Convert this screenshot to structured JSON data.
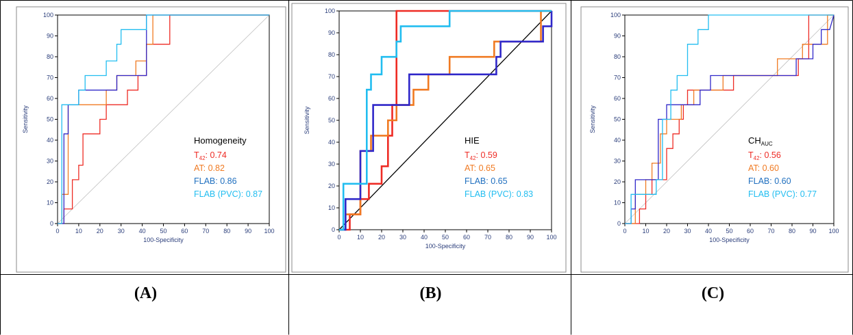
{
  "panel_labels": [
    "(A)",
    "(B)",
    "(C)"
  ],
  "colors": {
    "t42": "#ee2b24",
    "at": "#f07a22",
    "flab": "#2f27c9",
    "flab_pvc": "#21bdf0",
    "flab_text": "#1f6fbf",
    "axis_text": "#2a3d7a",
    "diagonal_a": "#c0c0c0",
    "diagonal_b": "#000000"
  },
  "chart_data": [
    {
      "type": "line",
      "panel": "A",
      "xlabel": "100-Specificity",
      "ylabel": "Sensitivity",
      "xlim": [
        0,
        100
      ],
      "ylim": [
        0,
        100
      ],
      "xticks": [
        "0",
        "10",
        "20",
        "30",
        "40",
        "50",
        "60",
        "70",
        "80",
        "90",
        "100"
      ],
      "yticks": [
        "0",
        "10",
        "20",
        "30",
        "40",
        "50",
        "60",
        "70",
        "80",
        "90",
        "100"
      ],
      "grid": false,
      "reference_line": "diagonal",
      "annotation": {
        "title": "Homogeneity",
        "lines": [
          {
            "prefix": "T",
            "sub": "42",
            "text": ": 0.74",
            "series": "t42"
          },
          {
            "prefix": "AT: 0.82",
            "sub": "",
            "text": "",
            "series": "at"
          },
          {
            "prefix": "FLAB: 0.86",
            "sub": "",
            "text": "",
            "series": "flab_text"
          },
          {
            "prefix": "FLAB (PVC): 0.87",
            "sub": "",
            "text": "",
            "series": "flab_pvc"
          }
        ]
      },
      "series": [
        {
          "key": "t42",
          "x": [
            0,
            3,
            3,
            7,
            7,
            10,
            10,
            12,
            12,
            20,
            20,
            23,
            23,
            33,
            33,
            38,
            38,
            42,
            42,
            53,
            53,
            100
          ],
          "y": [
            0,
            0,
            7,
            7,
            21,
            21,
            28,
            28,
            43,
            43,
            50,
            50,
            57,
            57,
            64,
            64,
            71,
            71,
            86,
            86,
            100,
            100
          ]
        },
        {
          "key": "at",
          "x": [
            0,
            2,
            2,
            5,
            5,
            23,
            23,
            28,
            28,
            33,
            33,
            37,
            37,
            42,
            42,
            45,
            45,
            100
          ],
          "y": [
            0,
            0,
            14,
            14,
            57,
            57,
            64,
            64,
            71,
            71,
            71,
            71,
            78,
            78,
            86,
            86,
            100,
            100
          ]
        },
        {
          "key": "flab",
          "x": [
            0,
            3,
            3,
            5,
            5,
            10,
            10,
            28,
            28,
            42,
            42,
            53,
            53,
            100
          ],
          "y": [
            0,
            0,
            43,
            43,
            57,
            57,
            64,
            64,
            71,
            71,
            100,
            100,
            100,
            100
          ]
        },
        {
          "key": "flab_pvc",
          "x": [
            0,
            2,
            2,
            10,
            10,
            13,
            13,
            23,
            23,
            28,
            28,
            30,
            30,
            42,
            42,
            57,
            57,
            100
          ],
          "y": [
            0,
            0,
            57,
            57,
            64,
            64,
            71,
            71,
            78,
            78,
            86,
            86,
            93,
            93,
            100,
            100,
            100,
            100
          ]
        }
      ]
    },
    {
      "type": "line",
      "panel": "B",
      "xlabel": "100-Specificity",
      "ylabel": "Sensitivity",
      "xlim": [
        0,
        100
      ],
      "ylim": [
        0,
        100
      ],
      "xticks": [
        "0",
        "10",
        "20",
        "30",
        "40",
        "50",
        "60",
        "70",
        "80",
        "90",
        "100"
      ],
      "yticks": [
        "0",
        "10",
        "20",
        "30",
        "40",
        "50",
        "60",
        "70",
        "80",
        "90",
        "100"
      ],
      "grid": false,
      "reference_line": "diagonal",
      "annotation": {
        "title": "HIE",
        "lines": [
          {
            "prefix": "T",
            "sub": "42",
            "text": ": 0.59",
            "series": "t42"
          },
          {
            "prefix": "AT: 0.65",
            "sub": "",
            "text": "",
            "series": "at"
          },
          {
            "prefix": "FLAB: 0.65",
            "sub": "",
            "text": "",
            "series": "flab_text"
          },
          {
            "prefix": "FLAB (PVC): 0.83",
            "sub": "",
            "text": "",
            "series": "flab_pvc"
          }
        ]
      },
      "series": [
        {
          "key": "t42",
          "x": [
            0,
            5,
            5,
            7,
            7,
            10,
            10,
            14,
            14,
            20,
            20,
            23,
            23,
            25,
            25,
            27,
            27,
            100
          ],
          "y": [
            0,
            0,
            7,
            7,
            7,
            7,
            14,
            14,
            21,
            21,
            29,
            29,
            43,
            43,
            57,
            57,
            100,
            100
          ]
        },
        {
          "key": "at",
          "x": [
            0,
            3,
            3,
            10,
            10,
            15,
            15,
            23,
            23,
            27,
            27,
            35,
            35,
            42,
            42,
            52,
            52,
            65,
            65,
            73,
            73,
            95,
            95,
            100
          ],
          "y": [
            0,
            0,
            7,
            7,
            36,
            36,
            43,
            43,
            50,
            50,
            57,
            57,
            64,
            64,
            71,
            71,
            79,
            79,
            79,
            79,
            86,
            86,
            100,
            100
          ]
        },
        {
          "key": "flab",
          "x": [
            0,
            3,
            3,
            7,
            7,
            10,
            10,
            13,
            13,
            16,
            16,
            33,
            33,
            74,
            74,
            76,
            76,
            96,
            96,
            98,
            98,
            100,
            100
          ],
          "y": [
            0,
            0,
            14,
            14,
            14,
            14,
            36,
            36,
            36,
            36,
            57,
            57,
            71,
            71,
            79,
            79,
            86,
            86,
            93,
            93,
            93,
            93,
            100
          ]
        },
        {
          "key": "flab_pvc",
          "x": [
            0,
            2,
            2,
            10,
            10,
            13,
            13,
            15,
            15,
            20,
            20,
            24,
            24,
            27,
            27,
            29,
            29,
            32,
            32,
            52,
            52,
            100
          ],
          "y": [
            0,
            0,
            21,
            21,
            21,
            21,
            64,
            64,
            71,
            71,
            79,
            79,
            79,
            79,
            86,
            86,
            93,
            93,
            93,
            93,
            100,
            100
          ]
        }
      ]
    },
    {
      "type": "line",
      "panel": "C",
      "xlabel": "100-Specificity",
      "ylabel": "Sensitivity",
      "xlim": [
        0,
        100
      ],
      "ylim": [
        0,
        100
      ],
      "xticks": [
        "0",
        "10",
        "20",
        "30",
        "40",
        "50",
        "60",
        "70",
        "80",
        "90",
        "100"
      ],
      "yticks": [
        "0",
        "10",
        "20",
        "30",
        "40",
        "50",
        "60",
        "70",
        "80",
        "90",
        "100"
      ],
      "grid": false,
      "reference_line": "diagonal",
      "annotation": {
        "title": "CH",
        "title_sub": "AUC",
        "lines": [
          {
            "prefix": "T",
            "sub": "42",
            "text": ": 0.56",
            "series": "t42"
          },
          {
            "prefix": "AT: 0.60",
            "sub": "",
            "text": "",
            "series": "at"
          },
          {
            "prefix": "FLAB: 0.60",
            "sub": "",
            "text": "",
            "series": "flab_text"
          },
          {
            "prefix": "FLAB (PVC): 0.77",
            "sub": "",
            "text": "",
            "series": "flab_pvc"
          }
        ]
      },
      "series": [
        {
          "key": "t42",
          "x": [
            0,
            7,
            7,
            10,
            10,
            13,
            13,
            20,
            20,
            23,
            23,
            26,
            26,
            28,
            28,
            30,
            30,
            38,
            38,
            52,
            52,
            83,
            83,
            88,
            88,
            100
          ],
          "y": [
            0,
            0,
            7,
            7,
            14,
            14,
            21,
            21,
            36,
            36,
            43,
            43,
            50,
            50,
            57,
            57,
            64,
            64,
            64,
            64,
            71,
            71,
            79,
            79,
            100,
            100
          ]
        },
        {
          "key": "at",
          "x": [
            0,
            5,
            5,
            10,
            10,
            13,
            13,
            17,
            17,
            20,
            20,
            27,
            27,
            33,
            33,
            38,
            38,
            47,
            47,
            73,
            73,
            85,
            85,
            97,
            97,
            100
          ],
          "y": [
            0,
            0,
            14,
            14,
            21,
            21,
            29,
            29,
            43,
            43,
            50,
            50,
            57,
            57,
            64,
            64,
            64,
            64,
            71,
            71,
            79,
            79,
            86,
            86,
            100,
            100
          ]
        },
        {
          "key": "flab",
          "x": [
            0,
            3,
            3,
            5,
            5,
            16,
            16,
            20,
            20,
            27,
            27,
            36,
            36,
            41,
            41,
            82,
            82,
            90,
            90,
            94,
            94,
            98,
            98,
            100
          ],
          "y": [
            0,
            0,
            7,
            7,
            21,
            21,
            50,
            50,
            57,
            57,
            57,
            57,
            64,
            64,
            71,
            71,
            79,
            79,
            86,
            86,
            93,
            93,
            93,
            100
          ]
        },
        {
          "key": "flab_pvc",
          "x": [
            0,
            3,
            3,
            15,
            15,
            18,
            18,
            22,
            22,
            25,
            25,
            30,
            30,
            35,
            35,
            40,
            40,
            60,
            60,
            100
          ],
          "y": [
            0,
            0,
            14,
            14,
            21,
            21,
            50,
            50,
            64,
            64,
            71,
            71,
            86,
            86,
            93,
            93,
            100,
            100,
            100,
            100
          ]
        }
      ]
    }
  ]
}
